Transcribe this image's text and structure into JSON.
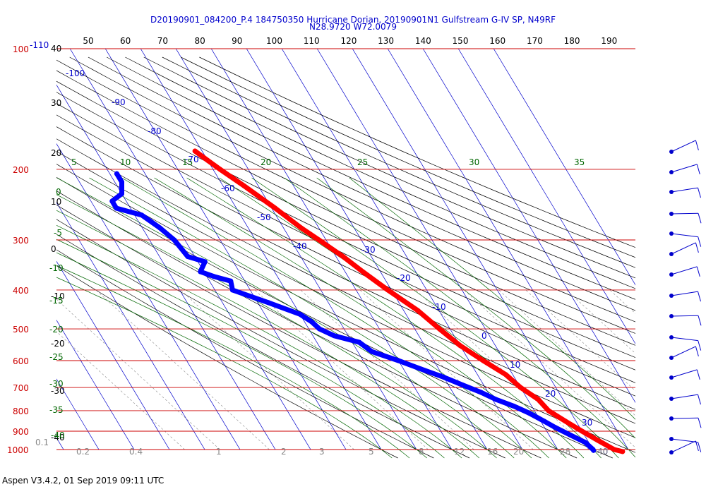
{
  "header": {
    "title_line1": "D20190901_084200_P.4 184750350 Hurricane Dorian, 20190901N1 Gulfstream G-IV SP, N49RF",
    "title_line2": "N28.9720 W72.0079"
  },
  "footer": {
    "text": "Aspen V3.4.2, 01 Sep 2019  09:11 UTC"
  },
  "chart_data": {
    "type": "skew-t",
    "pressure_levels_hpa": [
      100,
      200,
      300,
      400,
      500,
      600,
      700,
      800,
      900,
      1000
    ],
    "pressure_labels": [
      "100",
      "200",
      "300",
      "400",
      "500",
      "600",
      "700",
      "800",
      "900",
      "1000"
    ],
    "top_pressure_suffix": "-110",
    "top_axis_ticks": [
      "50",
      "60",
      "70",
      "80",
      "90",
      "100",
      "110",
      "120",
      "130",
      "140",
      "150",
      "160",
      "170",
      "180",
      "190"
    ],
    "left_temperature_labels": [
      "40",
      "30",
      "20",
      "10",
      "0",
      "-10",
      "-20",
      "-30",
      "-40"
    ],
    "isotherm_labels": [
      "-100",
      "-90",
      "-80",
      "-70",
      "-60",
      "-50",
      "-40",
      "-30",
      "-20",
      "-10",
      "0",
      "10",
      "20",
      "30",
      "40"
    ],
    "theta_e_labels": [
      "5",
      "10",
      "15",
      "20",
      "25",
      "30",
      "35"
    ],
    "moist_adiabat_labels": [
      "0",
      "-5",
      "-10",
      "-15",
      "-20",
      "-25",
      "-30",
      "-35",
      "-40"
    ],
    "mixing_ratio_labels": [
      "0.1",
      "0.2",
      "0.4",
      "1",
      "2",
      "3",
      "5",
      "8",
      "12",
      "16",
      "20",
      "28",
      "40"
    ],
    "temperature_profile": {
      "color": "#ff0000",
      "points": [
        [
          180,
          -42
        ],
        [
          190,
          -40
        ],
        [
          200,
          -38
        ],
        [
          220,
          -34
        ],
        [
          250,
          -29
        ],
        [
          280,
          -25
        ],
        [
          300,
          -22
        ],
        [
          330,
          -18
        ],
        [
          360,
          -15
        ],
        [
          400,
          -11
        ],
        [
          450,
          -6
        ],
        [
          500,
          -3
        ],
        [
          550,
          0
        ],
        [
          600,
          4
        ],
        [
          650,
          8
        ],
        [
          700,
          10
        ],
        [
          750,
          13
        ],
        [
          800,
          14
        ],
        [
          850,
          17
        ],
        [
          900,
          20
        ],
        [
          950,
          23
        ],
        [
          1000,
          26
        ],
        [
          1012,
          28
        ]
      ]
    },
    "dewpoint_profile": {
      "color": "#0000ff",
      "points": [
        [
          205,
          -68
        ],
        [
          215,
          -68
        ],
        [
          230,
          -70
        ],
        [
          240,
          -74
        ],
        [
          250,
          -74
        ],
        [
          260,
          -68
        ],
        [
          280,
          -65
        ],
        [
          300,
          -63
        ],
        [
          330,
          -62
        ],
        [
          340,
          -58
        ],
        [
          360,
          -61
        ],
        [
          370,
          -58
        ],
        [
          380,
          -54
        ],
        [
          400,
          -55
        ],
        [
          430,
          -47
        ],
        [
          460,
          -40
        ],
        [
          480,
          -38
        ],
        [
          500,
          -37
        ],
        [
          520,
          -34
        ],
        [
          540,
          -28
        ],
        [
          570,
          -26
        ],
        [
          600,
          -20
        ],
        [
          630,
          -15
        ],
        [
          660,
          -10
        ],
        [
          690,
          -6
        ],
        [
          720,
          -2
        ],
        [
          750,
          1
        ],
        [
          780,
          5
        ],
        [
          810,
          8
        ],
        [
          850,
          11
        ],
        [
          880,
          13
        ],
        [
          920,
          16
        ],
        [
          960,
          19
        ],
        [
          1000,
          20
        ],
        [
          1005,
          20
        ]
      ]
    },
    "wind_barb_count": 16,
    "colors": {
      "pressure_lines": "#cc0000",
      "isotherms": "#0000cc",
      "dry_adiabats": "#000000",
      "moist_adiabats": "#006600",
      "mixing_ratio": "#888888"
    }
  }
}
